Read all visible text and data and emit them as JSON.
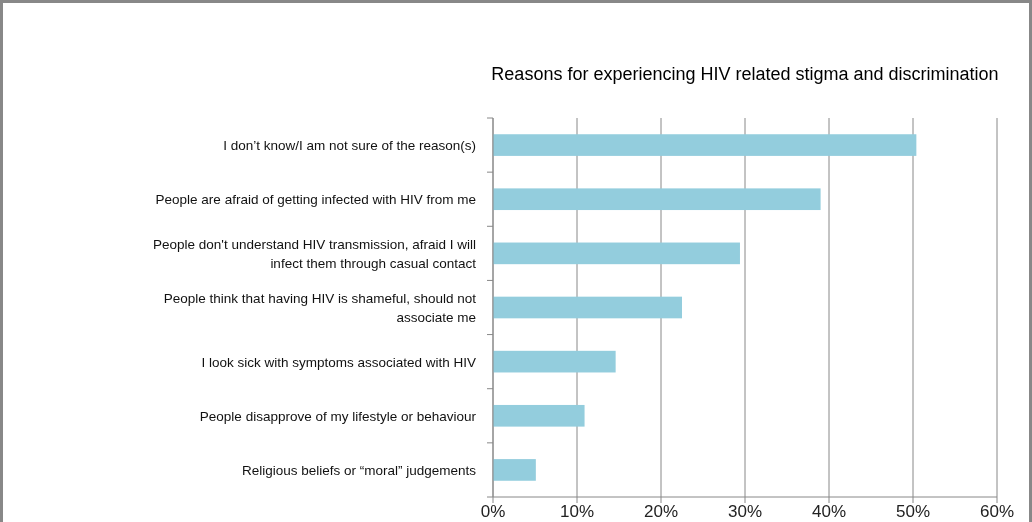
{
  "chart_data": {
    "type": "bar",
    "orientation": "horizontal",
    "title": "Reasons for experiencing HIV related stigma and discrimination",
    "categories": [
      "I don’t know/I am not sure of the reason(s)",
      "People are afraid of getting infected with HIV from me",
      "People don't understand HIV transmission, afraid I will\ninfect them through casual contact",
      "People think that having HIV is shameful, should not\nassociate me",
      "I look sick with symptoms associated with HIV",
      "People disapprove of my lifestyle or behaviour",
      "Religious beliefs or “moral” judgements"
    ],
    "values": [
      50.4,
      39.0,
      29.4,
      22.5,
      14.6,
      10.9,
      5.1
    ],
    "color": "#93cddd",
    "xlim": [
      0,
      60
    ],
    "xticks": [
      {
        "value": 0,
        "label": "0%"
      },
      {
        "value": 10,
        "label": "10%"
      },
      {
        "value": 20,
        "label": "20%"
      },
      {
        "value": 30,
        "label": "30%"
      },
      {
        "value": 40,
        "label": "40%"
      },
      {
        "value": 50,
        "label": "50%"
      },
      {
        "value": 60,
        "label": "60%"
      }
    ],
    "grid": "x"
  }
}
